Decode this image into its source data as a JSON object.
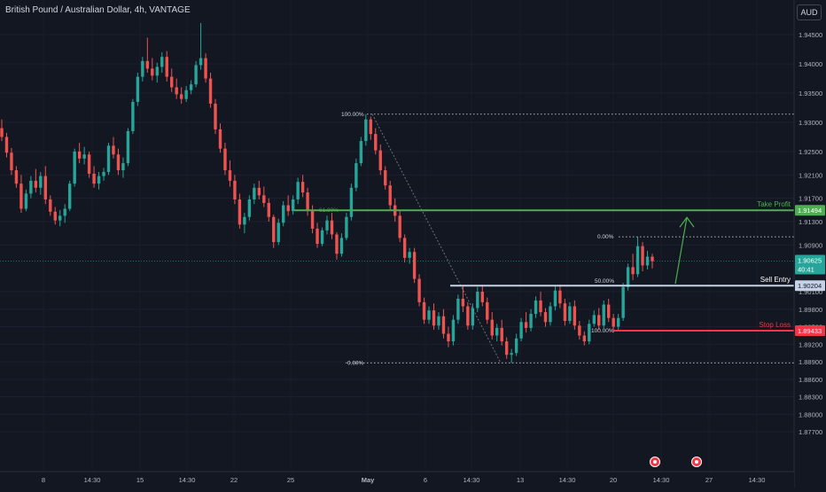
{
  "header": {
    "title": "British Pound / Australian Dollar, 4h, VANTAGE",
    "currency": "AUD"
  },
  "colors": {
    "background": "#131722",
    "up": "#26a69a",
    "down": "#ef5350",
    "take_profit": "#4caf50",
    "stop_loss": "#f23645",
    "entry": "#c5d2e8"
  },
  "chart_data": {
    "type": "candlestick",
    "ylim": [
      1.8705,
      1.947
    ],
    "y_ticks": [
      "1.94500",
      "1.94000",
      "1.93500",
      "1.93000",
      "1.92500",
      "1.92100",
      "1.91700",
      "1.91300",
      "1.90900",
      "1.90100",
      "1.89800",
      "1.89500",
      "1.89200",
      "1.88900",
      "1.88600",
      "1.88300",
      "1.88000",
      "1.87700"
    ],
    "x_ticks": [
      "8",
      "14:30",
      "15",
      "14:30",
      "22",
      "25",
      "May",
      "6",
      "14:30",
      "13",
      "14:30",
      "20",
      "14:30",
      "27",
      "14:30"
    ],
    "current_price": {
      "value": "1.90625",
      "countdown": "40:41"
    },
    "levels": [
      {
        "name": "Take Profit",
        "value": "1.91494"
      },
      {
        "name": "Sell Entry",
        "value": "1.90204"
      },
      {
        "name": "Stop Loss",
        "value": "1.89433"
      }
    ],
    "fib_left": {
      "top": {
        "label": "100.00%",
        "value": 1.9314
      },
      "mid": {
        "label": "61.80%",
        "value": 1.915
      },
      "bottom": {
        "label": "0.00%",
        "value": 1.8888
      }
    },
    "fib_right": {
      "top": {
        "label": "0.00%",
        "value": 1.9104
      },
      "mid": {
        "label": "50.00%",
        "value": 1.9024
      },
      "bottom": {
        "label": "100.00%",
        "value": 1.8943
      }
    },
    "candles": [
      [
        1.929,
        1.9305,
        1.9268,
        1.9275
      ],
      [
        1.9275,
        1.9282,
        1.924,
        1.9248
      ],
      [
        1.9248,
        1.9256,
        1.921,
        1.9218
      ],
      [
        1.9218,
        1.9225,
        1.9188,
        1.9195
      ],
      [
        1.9195,
        1.921,
        1.9145,
        1.9152
      ],
      [
        1.9152,
        1.9185,
        1.9148,
        1.9178
      ],
      [
        1.9178,
        1.9208,
        1.917,
        1.92
      ],
      [
        1.92,
        1.922,
        1.918,
        1.9188
      ],
      [
        1.9188,
        1.9215,
        1.9176,
        1.9208
      ],
      [
        1.9208,
        1.9225,
        1.916,
        1.9168
      ],
      [
        1.9168,
        1.9175,
        1.914,
        1.9147
      ],
      [
        1.9147,
        1.9155,
        1.9125,
        1.9132
      ],
      [
        1.9132,
        1.915,
        1.9122,
        1.914
      ],
      [
        1.914,
        1.916,
        1.9128,
        1.9152
      ],
      [
        1.9152,
        1.92,
        1.9148,
        1.9195
      ],
      [
        1.9195,
        1.9255,
        1.919,
        1.925
      ],
      [
        1.925,
        1.9265,
        1.923,
        1.9238
      ],
      [
        1.9238,
        1.9258,
        1.9228,
        1.9245
      ],
      [
        1.9245,
        1.925,
        1.9205,
        1.9212
      ],
      [
        1.9212,
        1.9225,
        1.9188,
        1.9195
      ],
      [
        1.9195,
        1.9215,
        1.9185,
        1.9208
      ],
      [
        1.9208,
        1.9222,
        1.92,
        1.9215
      ],
      [
        1.9215,
        1.9265,
        1.921,
        1.926
      ],
      [
        1.926,
        1.9275,
        1.9238,
        1.9245
      ],
      [
        1.9245,
        1.9255,
        1.921,
        1.9218
      ],
      [
        1.9218,
        1.924,
        1.9205,
        1.923
      ],
      [
        1.923,
        1.929,
        1.9225,
        1.9285
      ],
      [
        1.9285,
        1.934,
        1.928,
        1.9335
      ],
      [
        1.9335,
        1.9385,
        1.9328,
        1.9378
      ],
      [
        1.9378,
        1.9412,
        1.937,
        1.9405
      ],
      [
        1.9405,
        1.9445,
        1.9385,
        1.9392
      ],
      [
        1.9392,
        1.941,
        1.9372,
        1.938
      ],
      [
        1.938,
        1.9402,
        1.9368,
        1.9395
      ],
      [
        1.9395,
        1.942,
        1.9385,
        1.9412
      ],
      [
        1.9412,
        1.9422,
        1.937,
        1.9378
      ],
      [
        1.9378,
        1.9392,
        1.9352,
        1.936
      ],
      [
        1.936,
        1.9375,
        1.934,
        1.9348
      ],
      [
        1.9348,
        1.936,
        1.9332,
        1.934
      ],
      [
        1.934,
        1.9362,
        1.9335,
        1.9355
      ],
      [
        1.9355,
        1.9372,
        1.9348,
        1.9365
      ],
      [
        1.9365,
        1.9405,
        1.936,
        1.9398
      ],
      [
        1.9398,
        1.947,
        1.939,
        1.941
      ],
      [
        1.941,
        1.9418,
        1.9368,
        1.9375
      ],
      [
        1.9375,
        1.9385,
        1.9325,
        1.9332
      ],
      [
        1.9332,
        1.934,
        1.928,
        1.9288
      ],
      [
        1.9288,
        1.9298,
        1.9248,
        1.9255
      ],
      [
        1.9255,
        1.9265,
        1.921,
        1.9218
      ],
      [
        1.9218,
        1.9235,
        1.919,
        1.92
      ],
      [
        1.92,
        1.921,
        1.916,
        1.9168
      ],
      [
        1.9168,
        1.9178,
        1.9118,
        1.9125
      ],
      [
        1.9125,
        1.9145,
        1.911,
        1.9138
      ],
      [
        1.9138,
        1.9175,
        1.9132,
        1.9168
      ],
      [
        1.9168,
        1.9195,
        1.916,
        1.9188
      ],
      [
        1.9188,
        1.92,
        1.9168,
        1.9175
      ],
      [
        1.9175,
        1.919,
        1.9155,
        1.9162
      ],
      [
        1.9162,
        1.917,
        1.913,
        1.9138
      ],
      [
        1.9138,
        1.9142,
        1.9085,
        1.9095
      ],
      [
        1.9095,
        1.9135,
        1.909,
        1.9128
      ],
      [
        1.9128,
        1.9165,
        1.9122,
        1.9158
      ],
      [
        1.9158,
        1.9175,
        1.914,
        1.9148
      ],
      [
        1.9148,
        1.9175,
        1.9142,
        1.9168
      ],
      [
        1.9168,
        1.9205,
        1.916,
        1.9198
      ],
      [
        1.9198,
        1.921,
        1.9172,
        1.918
      ],
      [
        1.918,
        1.9188,
        1.914,
        1.9148
      ],
      [
        1.9148,
        1.9158,
        1.911,
        1.9118
      ],
      [
        1.9118,
        1.9128,
        1.9085,
        1.9092
      ],
      [
        1.9092,
        1.912,
        1.9088,
        1.9115
      ],
      [
        1.9115,
        1.914,
        1.9108,
        1.9132
      ],
      [
        1.9132,
        1.9145,
        1.91,
        1.9108
      ],
      [
        1.9108,
        1.9112,
        1.9065,
        1.9075
      ],
      [
        1.9075,
        1.911,
        1.907,
        1.9102
      ],
      [
        1.9102,
        1.9145,
        1.9098,
        1.9138
      ],
      [
        1.9138,
        1.9195,
        1.9132,
        1.9188
      ],
      [
        1.9188,
        1.9238,
        1.9182,
        1.923
      ],
      [
        1.923,
        1.9275,
        1.9225,
        1.9268
      ],
      [
        1.9268,
        1.9314,
        1.926,
        1.9305
      ],
      [
        1.9305,
        1.931,
        1.927,
        1.928
      ],
      [
        1.928,
        1.929,
        1.9245,
        1.9252
      ],
      [
        1.9252,
        1.9262,
        1.921,
        1.9218
      ],
      [
        1.9218,
        1.9225,
        1.9185,
        1.9192
      ],
      [
        1.9192,
        1.92,
        1.915,
        1.9158
      ],
      [
        1.9158,
        1.917,
        1.913,
        1.914
      ],
      [
        1.914,
        1.9148,
        1.9095,
        1.9102
      ],
      [
        1.9102,
        1.9108,
        1.906,
        1.9068
      ],
      [
        1.9068,
        1.9085,
        1.9058,
        1.9078
      ],
      [
        1.9078,
        1.9085,
        1.9025,
        1.9032
      ],
      [
        1.9032,
        1.904,
        1.8985,
        1.8992
      ],
      [
        1.8992,
        1.9,
        1.8955,
        1.8962
      ],
      [
        1.8962,
        1.8985,
        1.8955,
        1.8978
      ],
      [
        1.8978,
        1.899,
        1.8945,
        1.8952
      ],
      [
        1.8952,
        1.8975,
        1.8945,
        1.8968
      ],
      [
        1.8968,
        1.898,
        1.893,
        1.8938
      ],
      [
        1.8938,
        1.895,
        1.8915,
        1.8925
      ],
      [
        1.8925,
        1.897,
        1.8918,
        1.8962
      ],
      [
        1.8962,
        1.9005,
        1.8955,
        1.8998
      ],
      [
        1.8998,
        1.902,
        1.8975,
        1.8985
      ],
      [
        1.8985,
        1.8992,
        1.8945,
        1.8952
      ],
      [
        1.8952,
        1.899,
        1.8945,
        1.8982
      ],
      [
        1.8982,
        1.9018,
        1.8975,
        1.901
      ],
      [
        1.901,
        1.9022,
        1.8985,
        1.8992
      ],
      [
        1.8992,
        1.9,
        1.8955,
        1.8962
      ],
      [
        1.8962,
        1.8975,
        1.8928,
        1.8935
      ],
      [
        1.8935,
        1.8955,
        1.8925,
        1.8948
      ],
      [
        1.8948,
        1.8962,
        1.8918,
        1.8925
      ],
      [
        1.8925,
        1.8932,
        1.8895,
        1.8902
      ],
      [
        1.8902,
        1.8912,
        1.8888,
        1.8905
      ],
      [
        1.8905,
        1.8938,
        1.89,
        1.893
      ],
      [
        1.893,
        1.8965,
        1.8925,
        1.8958
      ],
      [
        1.8958,
        1.8975,
        1.894,
        1.8948
      ],
      [
        1.8948,
        1.898,
        1.8942,
        1.8972
      ],
      [
        1.8972,
        1.9002,
        1.8965,
        1.8995
      ],
      [
        1.8995,
        1.901,
        1.8968,
        1.8975
      ],
      [
        1.8975,
        1.8982,
        1.895,
        1.8958
      ],
      [
        1.8958,
        1.8992,
        1.8952,
        1.8985
      ],
      [
        1.8985,
        1.902,
        1.8978,
        1.9012
      ],
      [
        1.9012,
        1.9022,
        1.8982,
        1.899
      ],
      [
        1.899,
        1.8998,
        1.8952,
        1.896
      ],
      [
        1.896,
        1.8992,
        1.8955,
        1.8985
      ],
      [
        1.8985,
        1.8995,
        1.8945,
        1.8952
      ],
      [
        1.8952,
        1.896,
        1.8928,
        1.8935
      ],
      [
        1.8935,
        1.8942,
        1.8918,
        1.8925
      ],
      [
        1.8925,
        1.8962,
        1.892,
        1.8955
      ],
      [
        1.8955,
        1.8978,
        1.895,
        1.897
      ],
      [
        1.897,
        1.8982,
        1.8945,
        1.8952
      ],
      [
        1.8952,
        1.8995,
        1.8948,
        1.8988
      ],
      [
        1.8988,
        1.8998,
        1.8958,
        1.8965
      ],
      [
        1.8965,
        1.8972,
        1.894,
        1.895
      ],
      [
        1.895,
        1.8972,
        1.8944,
        1.8965
      ],
      [
        1.8965,
        1.9025,
        1.896,
        1.9018
      ],
      [
        1.9018,
        1.9058,
        1.9012,
        1.9052
      ],
      [
        1.9052,
        1.9075,
        1.903,
        1.904
      ],
      [
        1.904,
        1.9104,
        1.9035,
        1.9088
      ],
      [
        1.9088,
        1.9095,
        1.9045,
        1.9055
      ],
      [
        1.9055,
        1.908,
        1.9048,
        1.907
      ],
      [
        1.907,
        1.9075,
        1.905,
        1.9062
      ]
    ]
  }
}
